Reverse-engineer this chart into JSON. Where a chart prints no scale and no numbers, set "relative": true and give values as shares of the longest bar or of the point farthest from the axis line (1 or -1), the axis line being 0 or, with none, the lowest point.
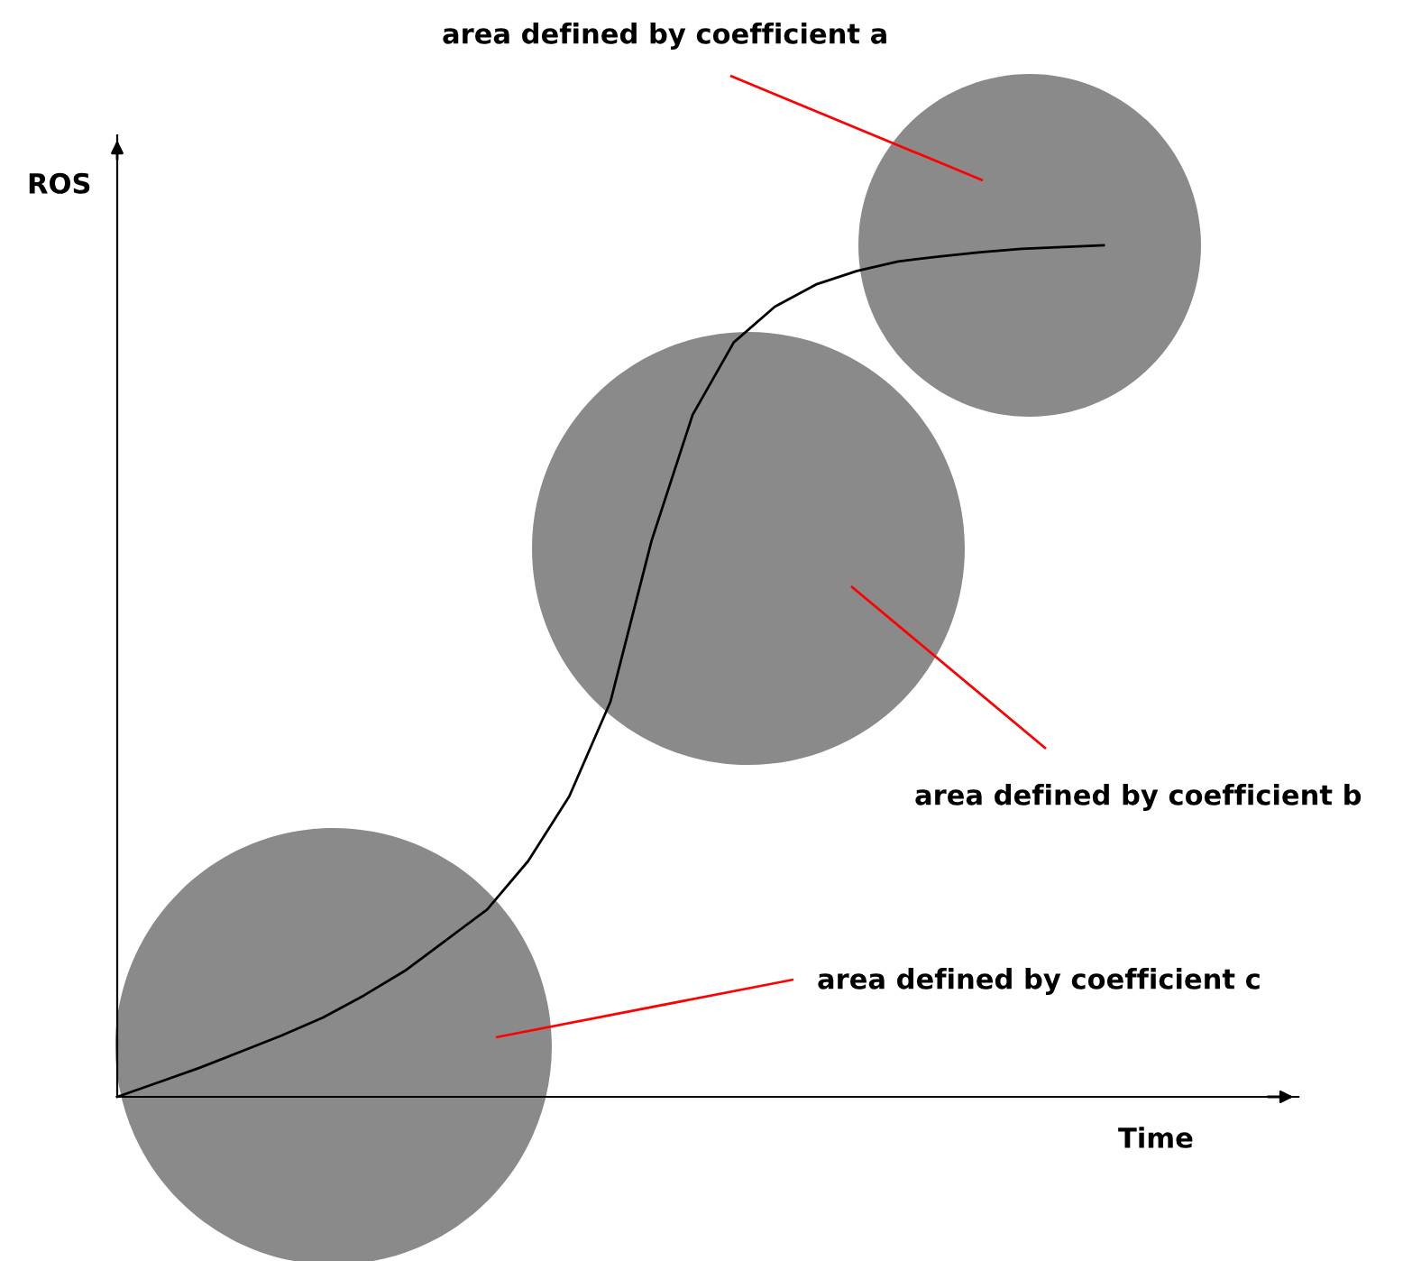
{
  "chart_data": {
    "type": "line",
    "relative": true,
    "xlabel": "Time",
    "ylabel": "ROS",
    "categories": [
      null,
      null,
      null,
      null,
      null,
      null,
      null,
      null,
      null,
      null,
      null,
      null,
      null,
      null,
      null,
      null,
      null,
      null,
      null,
      null,
      null,
      null,
      null,
      null,
      null
    ],
    "series": [
      {
        "color": "#000000",
        "values": [
          0,
          0.017,
          0.034,
          0.053,
          0.072,
          0.093,
          0.119,
          0.148,
          0.184,
          0.22,
          0.277,
          0.353,
          0.464,
          0.653,
          0.801,
          0.886,
          0.928,
          0.954,
          0.97,
          0.981,
          0.987,
          0.992,
          0.996,
          0.998,
          1.0
        ]
      }
    ],
    "annotations": [
      "area defined by coefficient a",
      "area defined by coefficient b",
      "area defined by coefficient c"
    ],
    "marker": "none",
    "line_style": "solid"
  }
}
